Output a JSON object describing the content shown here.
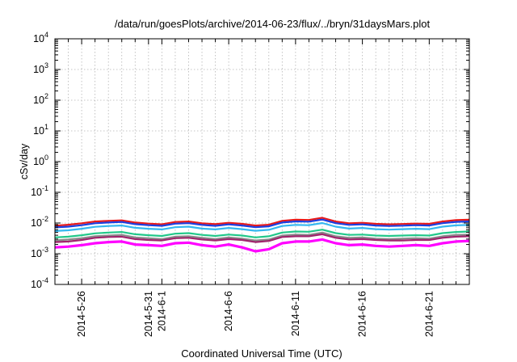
{
  "chart_data": {
    "type": "line",
    "title": "/data/run/goesPlots/archive/2014-06-23/flux/../bryn/31daysMars.plot",
    "xlabel": "Coordinated Universal Time (UTC)",
    "ylabel": "cSv/day",
    "yscale": "log",
    "ylim": [
      0.0001,
      10000
    ],
    "xlim": [
      "2014-05-24",
      "2014-06-24"
    ],
    "grid": true,
    "x_ticks": [
      {
        "date": "2014-05-26",
        "label": "2014-5-26"
      },
      {
        "date": "2014-05-31",
        "label": "2014-5-31"
      },
      {
        "date": "2014-06-01",
        "label": "2014-6-1"
      },
      {
        "date": "2014-06-06",
        "label": "2014-6-6"
      },
      {
        "date": "2014-06-11",
        "label": "2014-6-11"
      },
      {
        "date": "2014-06-16",
        "label": "2014-6-16"
      },
      {
        "date": "2014-06-21",
        "label": "2014-6-21"
      }
    ],
    "y_ticks": [
      {
        "value": 0.0001,
        "base": "10",
        "exp": "-4"
      },
      {
        "value": 0.001,
        "base": "10",
        "exp": "-3"
      },
      {
        "value": 0.01,
        "base": "10",
        "exp": "-2"
      },
      {
        "value": 0.1,
        "base": "10",
        "exp": "-1"
      },
      {
        "value": 1,
        "base": "10",
        "exp": "0"
      },
      {
        "value": 10,
        "base": "10",
        "exp": "1"
      },
      {
        "value": 100,
        "base": "10",
        "exp": "2"
      },
      {
        "value": 1000,
        "base": "10",
        "exp": "3"
      },
      {
        "value": 10000,
        "base": "10",
        "exp": "4"
      }
    ],
    "series": [
      {
        "color": "#e8191a",
        "values": [
          [
            "2014-05-24",
            0.0082
          ],
          [
            "2014-05-25",
            0.0088
          ],
          [
            "2014-05-26",
            0.0098
          ],
          [
            "2014-05-27",
            0.0112
          ],
          [
            "2014-05-28",
            0.0118
          ],
          [
            "2014-05-29",
            0.0122
          ],
          [
            "2014-05-30",
            0.0104
          ],
          [
            "2014-05-31",
            0.0096
          ],
          [
            "2014-06-01",
            0.0091
          ],
          [
            "2014-06-02",
            0.0108
          ],
          [
            "2014-06-03",
            0.0112
          ],
          [
            "2014-06-04",
            0.0098
          ],
          [
            "2014-06-05",
            0.0092
          ],
          [
            "2014-06-06",
            0.0102
          ],
          [
            "2014-06-07",
            0.0094
          ],
          [
            "2014-06-08",
            0.0083
          ],
          [
            "2014-06-09",
            0.0088
          ],
          [
            "2014-06-10",
            0.0118
          ],
          [
            "2014-06-11",
            0.0128
          ],
          [
            "2014-06-12",
            0.0126
          ],
          [
            "2014-06-13",
            0.0148
          ],
          [
            "2014-06-14",
            0.0112
          ],
          [
            "2014-06-15",
            0.0098
          ],
          [
            "2014-06-16",
            0.0102
          ],
          [
            "2014-06-17",
            0.0094
          ],
          [
            "2014-06-18",
            0.0091
          ],
          [
            "2014-06-19",
            0.0093
          ],
          [
            "2014-06-20",
            0.0096
          ],
          [
            "2014-06-21",
            0.0094
          ],
          [
            "2014-06-22",
            0.0112
          ],
          [
            "2014-06-23",
            0.0124
          ],
          [
            "2014-06-24",
            0.0128
          ]
        ]
      },
      {
        "color": "#1b3ee0",
        "values": [
          [
            "2014-05-24",
            0.0072
          ],
          [
            "2014-05-25",
            0.0076
          ],
          [
            "2014-05-26",
            0.0085
          ],
          [
            "2014-05-27",
            0.0098
          ],
          [
            "2014-05-28",
            0.0104
          ],
          [
            "2014-05-29",
            0.0108
          ],
          [
            "2014-05-30",
            0.0092
          ],
          [
            "2014-05-31",
            0.0085
          ],
          [
            "2014-06-01",
            0.0081
          ],
          [
            "2014-06-02",
            0.0095
          ],
          [
            "2014-06-03",
            0.0099
          ],
          [
            "2014-06-04",
            0.0087
          ],
          [
            "2014-06-05",
            0.0081
          ],
          [
            "2014-06-06",
            0.009
          ],
          [
            "2014-06-07",
            0.0083
          ],
          [
            "2014-06-08",
            0.0073
          ],
          [
            "2014-06-09",
            0.0078
          ],
          [
            "2014-06-10",
            0.0104
          ],
          [
            "2014-06-11",
            0.0113
          ],
          [
            "2014-06-12",
            0.0111
          ],
          [
            "2014-06-13",
            0.013
          ],
          [
            "2014-06-14",
            0.0099
          ],
          [
            "2014-06-15",
            0.0087
          ],
          [
            "2014-06-16",
            0.009
          ],
          [
            "2014-06-17",
            0.0083
          ],
          [
            "2014-06-18",
            0.008
          ],
          [
            "2014-06-19",
            0.0082
          ],
          [
            "2014-06-20",
            0.0085
          ],
          [
            "2014-06-21",
            0.0083
          ],
          [
            "2014-06-22",
            0.0099
          ],
          [
            "2014-06-23",
            0.0109
          ],
          [
            "2014-06-24",
            0.0113
          ]
        ]
      },
      {
        "color": "#35b8f0",
        "values": [
          [
            "2014-05-24",
            0.0055
          ],
          [
            "2014-05-25",
            0.0058
          ],
          [
            "2014-05-26",
            0.0065
          ],
          [
            "2014-05-27",
            0.0075
          ],
          [
            "2014-05-28",
            0.008
          ],
          [
            "2014-05-29",
            0.0083
          ],
          [
            "2014-05-30",
            0.007
          ],
          [
            "2014-05-31",
            0.0065
          ],
          [
            "2014-06-01",
            0.0062
          ],
          [
            "2014-06-02",
            0.0073
          ],
          [
            "2014-06-03",
            0.0076
          ],
          [
            "2014-06-04",
            0.0066
          ],
          [
            "2014-06-05",
            0.0062
          ],
          [
            "2014-06-06",
            0.0069
          ],
          [
            "2014-06-07",
            0.0063
          ],
          [
            "2014-06-08",
            0.0056
          ],
          [
            "2014-06-09",
            0.006
          ],
          [
            "2014-06-10",
            0.008
          ],
          [
            "2014-06-11",
            0.0087
          ],
          [
            "2014-06-12",
            0.0085
          ],
          [
            "2014-06-13",
            0.01
          ],
          [
            "2014-06-14",
            0.0076
          ],
          [
            "2014-06-15",
            0.0066
          ],
          [
            "2014-06-16",
            0.0069
          ],
          [
            "2014-06-17",
            0.0063
          ],
          [
            "2014-06-18",
            0.0061
          ],
          [
            "2014-06-19",
            0.0063
          ],
          [
            "2014-06-20",
            0.0065
          ],
          [
            "2014-06-21",
            0.0063
          ],
          [
            "2014-06-22",
            0.0076
          ],
          [
            "2014-06-23",
            0.0084
          ],
          [
            "2014-06-24",
            0.0087
          ]
        ]
      },
      {
        "color": "#22c88a",
        "values": [
          [
            "2014-05-24",
            0.0034
          ],
          [
            "2014-05-25",
            0.0036
          ],
          [
            "2014-05-26",
            0.004
          ],
          [
            "2014-05-27",
            0.0046
          ],
          [
            "2014-05-28",
            0.0049
          ],
          [
            "2014-05-29",
            0.0051
          ],
          [
            "2014-05-30",
            0.0043
          ],
          [
            "2014-05-31",
            0.004
          ],
          [
            "2014-06-01",
            0.0038
          ],
          [
            "2014-06-02",
            0.0045
          ],
          [
            "2014-06-03",
            0.0047
          ],
          [
            "2014-06-04",
            0.0041
          ],
          [
            "2014-06-05",
            0.0038
          ],
          [
            "2014-06-06",
            0.0042
          ],
          [
            "2014-06-07",
            0.0039
          ],
          [
            "2014-06-08",
            0.0034
          ],
          [
            "2014-06-09",
            0.0037
          ],
          [
            "2014-06-10",
            0.0049
          ],
          [
            "2014-06-11",
            0.0053
          ],
          [
            "2014-06-12",
            0.0052
          ],
          [
            "2014-06-13",
            0.0061
          ],
          [
            "2014-06-14",
            0.0047
          ],
          [
            "2014-06-15",
            0.0041
          ],
          [
            "2014-06-16",
            0.0042
          ],
          [
            "2014-06-17",
            0.0039
          ],
          [
            "2014-06-18",
            0.0038
          ],
          [
            "2014-06-19",
            0.0039
          ],
          [
            "2014-06-20",
            0.004
          ],
          [
            "2014-06-21",
            0.0039
          ],
          [
            "2014-06-22",
            0.0047
          ],
          [
            "2014-06-23",
            0.0051
          ],
          [
            "2014-06-24",
            0.0053
          ]
        ]
      },
      {
        "color": "#8a8a8a",
        "values": [
          [
            "2014-05-24",
            0.0027
          ],
          [
            "2014-05-25",
            0.0029
          ],
          [
            "2014-05-26",
            0.0032
          ],
          [
            "2014-05-27",
            0.0037
          ],
          [
            "2014-05-28",
            0.0039
          ],
          [
            "2014-05-29",
            0.0041
          ],
          [
            "2014-05-30",
            0.0034
          ],
          [
            "2014-05-31",
            0.0032
          ],
          [
            "2014-06-01",
            0.003
          ],
          [
            "2014-06-02",
            0.0036
          ],
          [
            "2014-06-03",
            0.0037
          ],
          [
            "2014-06-04",
            0.0033
          ],
          [
            "2014-06-05",
            0.003
          ],
          [
            "2014-06-06",
            0.0034
          ],
          [
            "2014-06-07",
            0.0031
          ],
          [
            "2014-06-08",
            0.0027
          ],
          [
            "2014-06-09",
            0.0029
          ],
          [
            "2014-06-10",
            0.0039
          ],
          [
            "2014-06-11",
            0.0042
          ],
          [
            "2014-06-12",
            0.0041
          ],
          [
            "2014-06-13",
            0.0049
          ],
          [
            "2014-06-14",
            0.0037
          ],
          [
            "2014-06-15",
            0.0033
          ],
          [
            "2014-06-16",
            0.0034
          ],
          [
            "2014-06-17",
            0.0031
          ],
          [
            "2014-06-18",
            0.003
          ],
          [
            "2014-06-19",
            0.0031
          ],
          [
            "2014-06-20",
            0.0032
          ],
          [
            "2014-06-21",
            0.0031
          ],
          [
            "2014-06-22",
            0.0037
          ],
          [
            "2014-06-23",
            0.0041
          ],
          [
            "2014-06-24",
            0.0042
          ]
        ]
      },
      {
        "color": "#a0246c",
        "values": [
          [
            "2014-05-24",
            0.0024
          ],
          [
            "2014-05-25",
            0.0025
          ],
          [
            "2014-05-26",
            0.0028
          ],
          [
            "2014-05-27",
            0.0033
          ],
          [
            "2014-05-28",
            0.0035
          ],
          [
            "2014-05-29",
            0.0036
          ],
          [
            "2014-05-30",
            0.003
          ],
          [
            "2014-05-31",
            0.0028
          ],
          [
            "2014-06-01",
            0.0027
          ],
          [
            "2014-06-02",
            0.0032
          ],
          [
            "2014-06-03",
            0.0033
          ],
          [
            "2014-06-04",
            0.0029
          ],
          [
            "2014-06-05",
            0.0027
          ],
          [
            "2014-06-06",
            0.003
          ],
          [
            "2014-06-07",
            0.0028
          ],
          [
            "2014-06-08",
            0.0024
          ],
          [
            "2014-06-09",
            0.0026
          ],
          [
            "2014-06-10",
            0.0035
          ],
          [
            "2014-06-11",
            0.0037
          ],
          [
            "2014-06-12",
            0.0037
          ],
          [
            "2014-06-13",
            0.0043
          ],
          [
            "2014-06-14",
            0.0033
          ],
          [
            "2014-06-15",
            0.0029
          ],
          [
            "2014-06-16",
            0.003
          ],
          [
            "2014-06-17",
            0.0028
          ],
          [
            "2014-06-18",
            0.0027
          ],
          [
            "2014-06-19",
            0.0027
          ],
          [
            "2014-06-20",
            0.0028
          ],
          [
            "2014-06-21",
            0.0028
          ],
          [
            "2014-06-22",
            0.0033
          ],
          [
            "2014-06-23",
            0.0036
          ],
          [
            "2014-06-24",
            0.0037
          ]
        ]
      },
      {
        "color": "#ff00ff",
        "values": [
          [
            "2014-05-24",
            0.0016
          ],
          [
            "2014-05-25",
            0.0017
          ],
          [
            "2014-05-26",
            0.0019
          ],
          [
            "2014-05-27",
            0.0022
          ],
          [
            "2014-05-28",
            0.0024
          ],
          [
            "2014-05-29",
            0.0025
          ],
          [
            "2014-05-30",
            0.002
          ],
          [
            "2014-05-31",
            0.0019
          ],
          [
            "2014-06-01",
            0.0018
          ],
          [
            "2014-06-02",
            0.0022
          ],
          [
            "2014-06-03",
            0.0023
          ],
          [
            "2014-06-04",
            0.0019
          ],
          [
            "2014-06-05",
            0.0017
          ],
          [
            "2014-06-06",
            0.002
          ],
          [
            "2014-06-07",
            0.0016
          ],
          [
            "2014-06-08",
            0.0012
          ],
          [
            "2014-06-09",
            0.0014
          ],
          [
            "2014-06-10",
            0.0022
          ],
          [
            "2014-06-11",
            0.0025
          ],
          [
            "2014-06-12",
            0.0025
          ],
          [
            "2014-06-13",
            0.0029
          ],
          [
            "2014-06-14",
            0.0022
          ],
          [
            "2014-06-15",
            0.0019
          ],
          [
            "2014-06-16",
            0.002
          ],
          [
            "2014-06-17",
            0.0018
          ],
          [
            "2014-06-18",
            0.0017
          ],
          [
            "2014-06-19",
            0.0018
          ],
          [
            "2014-06-20",
            0.0019
          ],
          [
            "2014-06-21",
            0.0018
          ],
          [
            "2014-06-22",
            0.0022
          ],
          [
            "2014-06-23",
            0.0025
          ],
          [
            "2014-06-24",
            0.0026
          ]
        ]
      }
    ]
  }
}
